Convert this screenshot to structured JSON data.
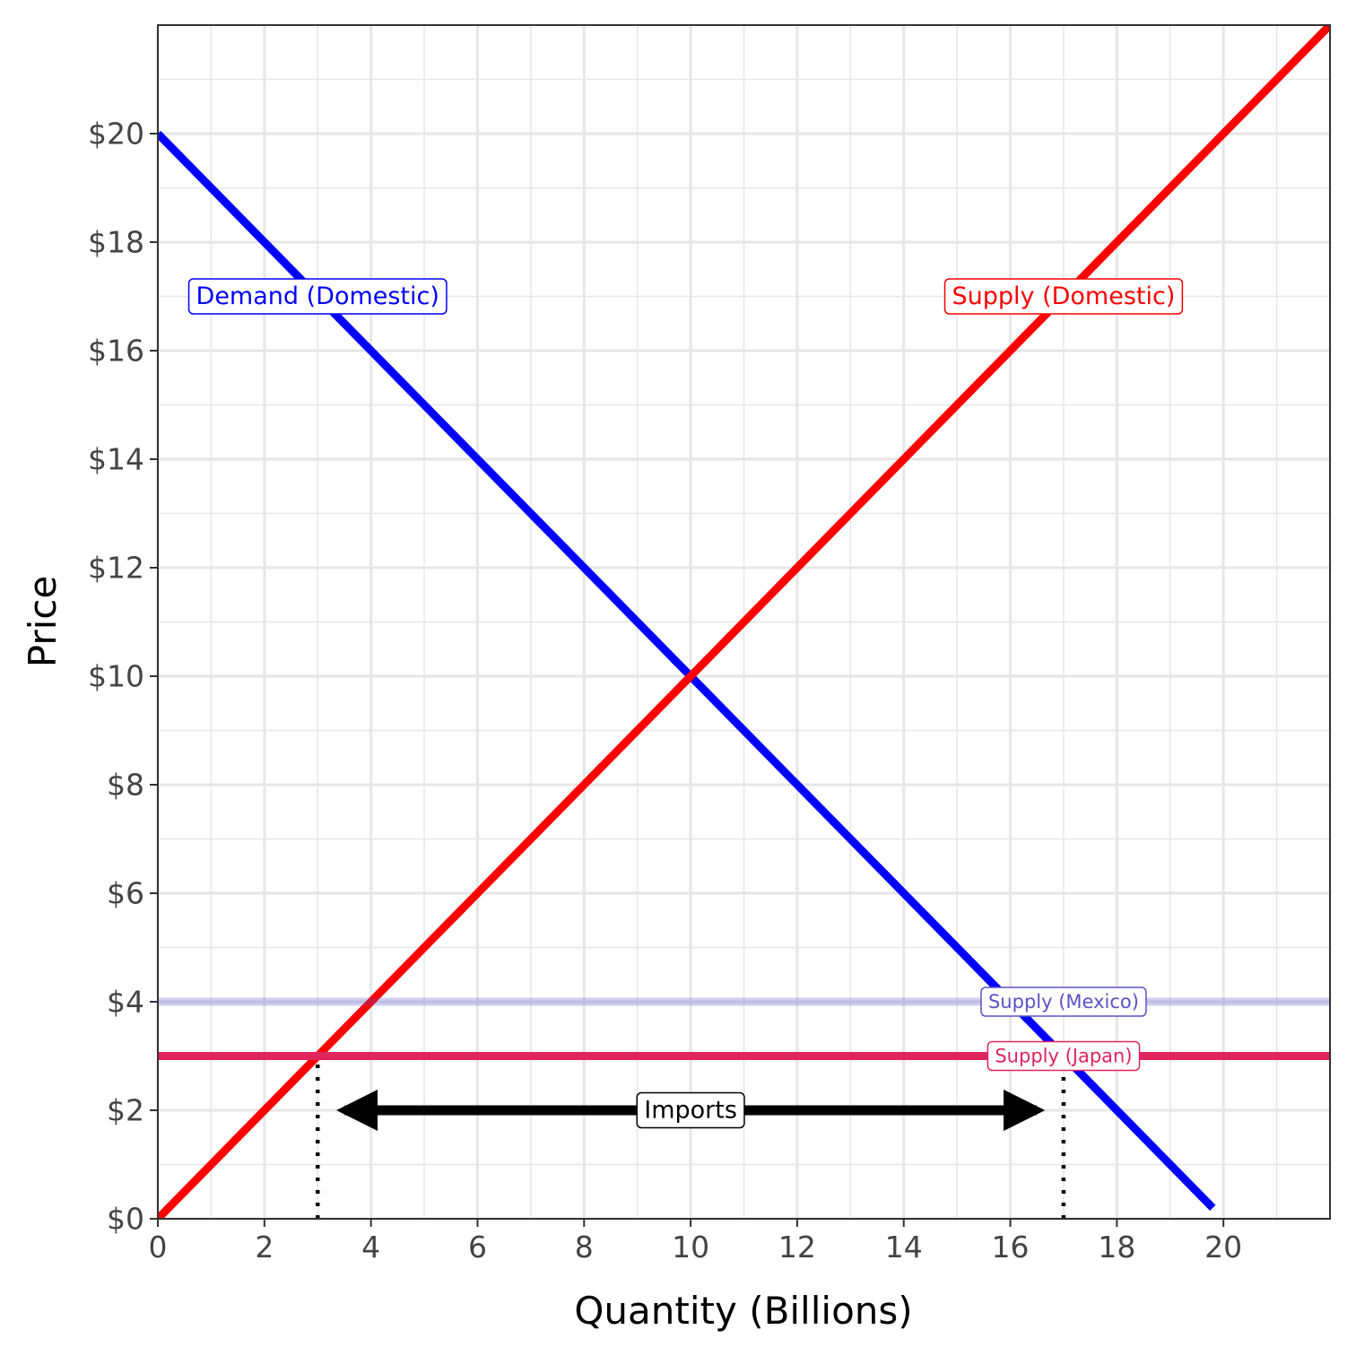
{
  "chart_data": {
    "type": "line",
    "title": "",
    "xlabel": "Quantity (Billions)",
    "ylabel": "Price",
    "xlim": [
      0,
      22
    ],
    "ylim": [
      0,
      22
    ],
    "x_ticks": [
      0,
      2,
      4,
      6,
      8,
      10,
      12,
      14,
      16,
      18,
      20
    ],
    "x_tick_labels": [
      "0",
      "2",
      "4",
      "6",
      "8",
      "10",
      "12",
      "14",
      "16",
      "18",
      "20"
    ],
    "y_ticks": [
      0,
      2,
      4,
      6,
      8,
      10,
      12,
      14,
      16,
      18,
      20
    ],
    "y_tick_labels": [
      "$0",
      "$2",
      "$4",
      "$6",
      "$8",
      "$10",
      "$12",
      "$14",
      "$16",
      "$18",
      "$20"
    ],
    "grid": true,
    "series": [
      {
        "key": "demand",
        "name": "Demand (Domestic)",
        "color": "#0000ff",
        "opacity": 1,
        "points": [
          [
            0,
            20
          ],
          [
            19.8,
            0.2
          ]
        ]
      },
      {
        "key": "supply_domestic",
        "name": "Supply (Domestic)",
        "color": "#ff0000",
        "opacity": 1,
        "points": [
          [
            0,
            0
          ],
          [
            22,
            22
          ]
        ]
      },
      {
        "key": "supply_mexico",
        "name": "Supply (Mexico)",
        "color": "#5b52c7",
        "opacity": 0.28,
        "points": [
          [
            0,
            4
          ],
          [
            22,
            4
          ]
        ]
      },
      {
        "key": "supply_japan",
        "name": "Supply (Japan)",
        "color": "#e0245e",
        "opacity": 1,
        "points": [
          [
            0,
            3
          ],
          [
            22,
            3
          ]
        ]
      }
    ],
    "labels": [
      {
        "key": "demand",
        "text": "Demand (Domestic)",
        "x": 3,
        "y": 17,
        "color": "#0000ff",
        "size": "large"
      },
      {
        "key": "supply_domestic",
        "text": "Supply (Domestic)",
        "x": 17,
        "y": 17,
        "color": "#ff0000",
        "size": "large"
      },
      {
        "key": "supply_mexico",
        "text": "Supply (Mexico)",
        "x": 17,
        "y": 4,
        "color": "#5b52c7",
        "size": "small"
      },
      {
        "key": "supply_japan",
        "text": "Supply (Japan)",
        "x": 17,
        "y": 3,
        "color": "#e0245e",
        "size": "small"
      }
    ],
    "reference_lines": [
      {
        "x": 3,
        "y_from": 0,
        "y_to": 3
      },
      {
        "x": 17,
        "y_from": 0,
        "y_to": 3
      }
    ],
    "annotation": {
      "text": "Imports",
      "x_from": 3,
      "x_to": 17,
      "y": 2
    }
  }
}
